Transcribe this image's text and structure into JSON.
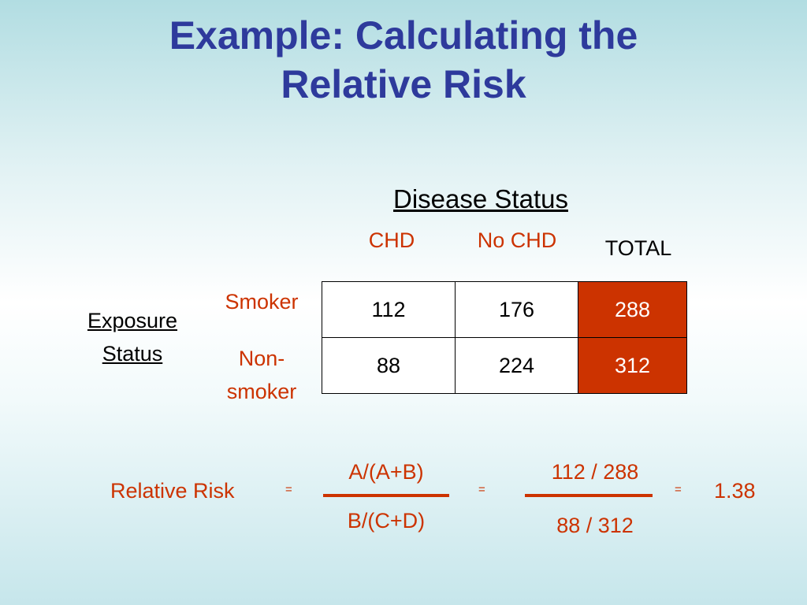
{
  "title": {
    "line1": "Example:  Calculating the",
    "line2": "Relative Risk"
  },
  "header": {
    "disease_status": "Disease Status"
  },
  "columns": {
    "chd": "CHD",
    "no_chd": "No CHD",
    "total": "TOTAL"
  },
  "rows": {
    "exposure_line1": "Exposure",
    "exposure_line2": "Status",
    "smoker": "Smoker",
    "nonsmoker_line1": "Non-",
    "nonsmoker_line2": "smoker"
  },
  "table": [
    [
      "112",
      "176",
      "288"
    ],
    [
      "88",
      "224",
      "312"
    ]
  ],
  "formula": {
    "label": "Relative Risk",
    "eq": "=",
    "num1": "A/(A+B)",
    "den1": "B/(C+D)",
    "num2": "112 / 288",
    "den2": "88 / 312",
    "result": "1.38"
  },
  "colors": {
    "title": "#2e3a9c",
    "accent": "#cc3300"
  }
}
